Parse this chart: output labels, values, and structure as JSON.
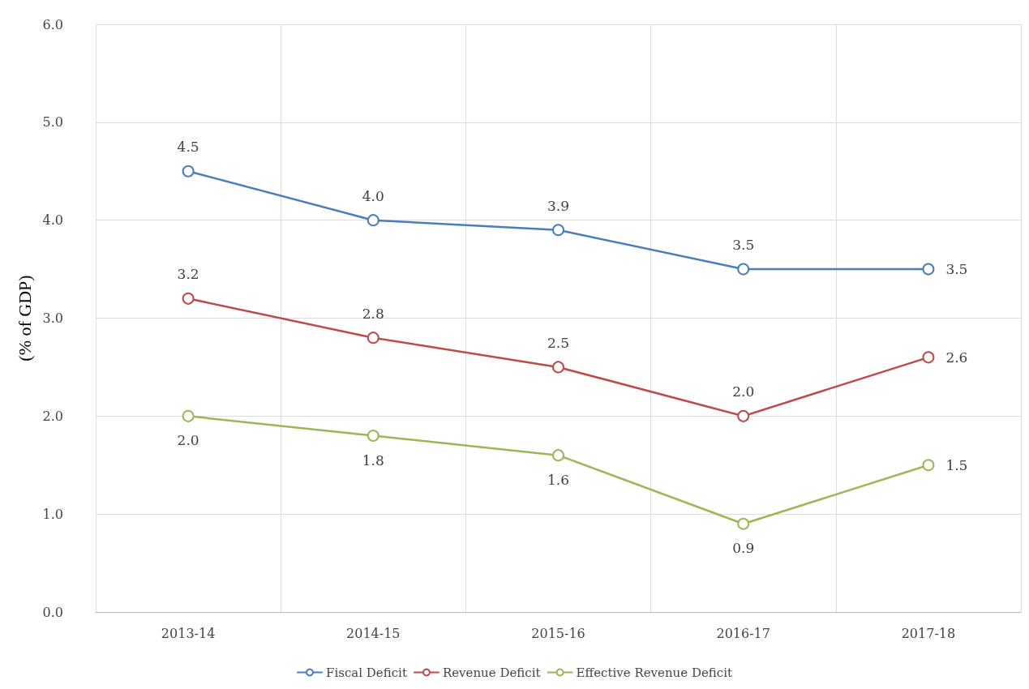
{
  "chart_data": {
    "type": "line",
    "ylabel": "(% of GDP)",
    "categories": [
      "2013-14",
      "2014-15",
      "2015-16",
      "2016-17",
      "2017-18"
    ],
    "series": [
      {
        "name": "Fiscal Deficit",
        "color": "#4a7ebb",
        "values": [
          4.5,
          4.0,
          3.9,
          3.5,
          3.5
        ],
        "value_labels": [
          "4.5",
          "4.0",
          "3.9",
          "3.5",
          "3.5"
        ]
      },
      {
        "name": "Revenue Deficit",
        "color": "#be4b48",
        "values": [
          3.2,
          2.8,
          2.5,
          2.0,
          2.6
        ],
        "value_labels": [
          "3.2",
          "2.8",
          "2.5",
          "2.0",
          "2.6"
        ]
      },
      {
        "name": "Effective Revenue Deficit",
        "color": "#98b954",
        "values": [
          2.0,
          1.8,
          1.6,
          0.9,
          1.5
        ],
        "value_labels": [
          "2.0",
          "1.8",
          "1.6",
          "0.9",
          "1.5"
        ]
      }
    ],
    "ylim": [
      0,
      6
    ],
    "yticks": [
      {
        "value": 0,
        "label": "0.0"
      },
      {
        "value": 1,
        "label": "1.0"
      },
      {
        "value": 2,
        "label": "2.0"
      },
      {
        "value": 3,
        "label": "3.0"
      },
      {
        "value": 4,
        "label": "4.0"
      },
      {
        "value": 5,
        "label": "5.0"
      },
      {
        "value": 6,
        "label": "6.0"
      }
    ],
    "grid": true,
    "legend": "bottom",
    "marker": "circle",
    "line_style": "solid"
  }
}
